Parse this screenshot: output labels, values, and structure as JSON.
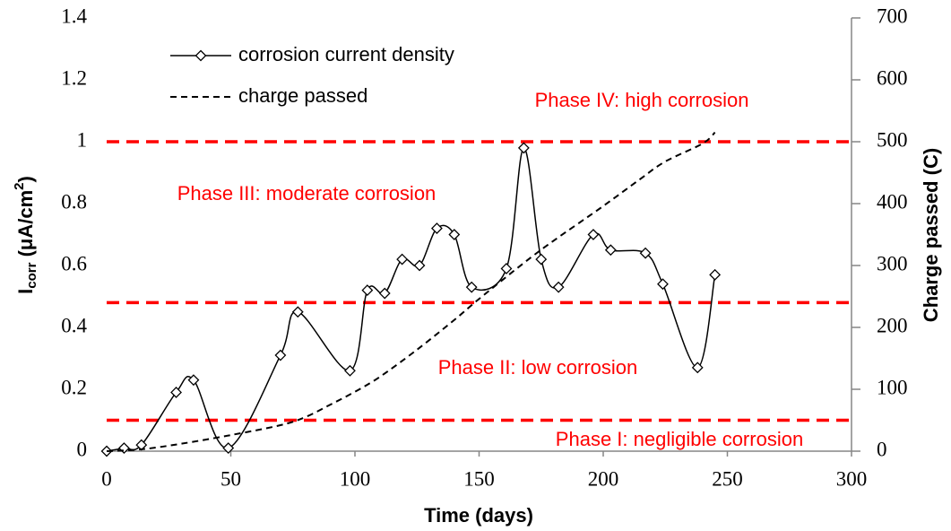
{
  "chart_data": {
    "type": "line",
    "x_label": "Time (days)",
    "y_label": {
      "main": "I",
      "sub": "corr",
      "unit": " (μA/cm",
      "sup": "2",
      "close": ")"
    },
    "y2_label": "Charge passed (C)",
    "xlim": [
      0,
      300
    ],
    "xticks": [
      0,
      50,
      100,
      150,
      200,
      250,
      300
    ],
    "ylim": [
      0,
      1.4
    ],
    "yticks": [
      0,
      0.2,
      0.4,
      0.6,
      0.8,
      1,
      1.2,
      1.4
    ],
    "y2lim": [
      0,
      700
    ],
    "y2ticks": [
      0,
      100,
      200,
      300,
      400,
      500,
      600,
      700
    ],
    "legend": "upper left",
    "series": [
      {
        "name": "corrosion current density",
        "color": "#000000",
        "style": "solid-diamond",
        "x": [
          0,
          7,
          14,
          28,
          35,
          49,
          70,
          77,
          98,
          105,
          112,
          119,
          126,
          133,
          140,
          147,
          161,
          168,
          175,
          182,
          196,
          203,
          217,
          224,
          238,
          245
        ],
        "values": [
          0,
          0.01,
          0.02,
          0.19,
          0.23,
          0.01,
          0.31,
          0.45,
          0.26,
          0.52,
          0.51,
          0.62,
          0.6,
          0.72,
          0.7,
          0.53,
          0.59,
          0.98,
          0.62,
          0.53,
          0.7,
          0.65,
          0.64,
          0.54,
          0.27,
          0.57
        ]
      },
      {
        "name": "charge passed",
        "color": "#000000",
        "style": "dashed",
        "axis": "y2",
        "x": [
          0,
          14,
          30,
          50,
          70,
          80,
          90,
          100,
          110,
          125,
          140,
          150,
          168,
          180,
          200,
          215,
          225,
          240,
          245
        ],
        "values": [
          0,
          3,
          12,
          26,
          42,
          55,
          75,
          96,
          120,
          164,
          212,
          246,
          304,
          340,
          396,
          440,
          468,
          497,
          515
        ]
      }
    ],
    "thresholds": {
      "color": "#ff0000",
      "values": [
        0.1,
        0.48,
        1
      ]
    },
    "annotations": [
      "Phase IV: high corrosion",
      "Phase III: moderate corrosion",
      "Phase II: low corrosion",
      "Phase I: negligible corrosion"
    ]
  }
}
